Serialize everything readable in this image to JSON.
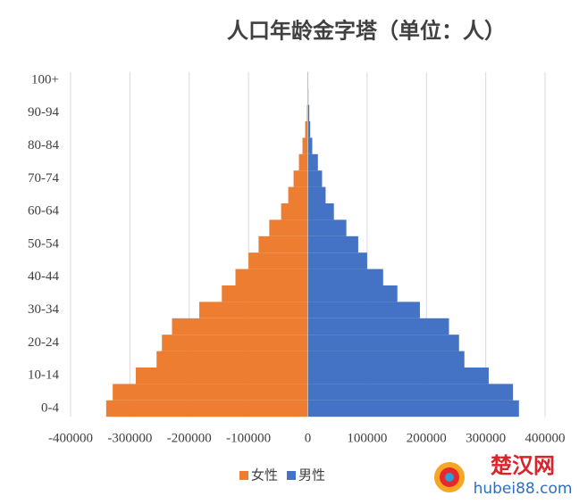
{
  "chart_data": {
    "type": "bar",
    "orientation": "horizontal",
    "title": "人口年龄金字塔（单位：人）",
    "categories": [
      "0-4",
      null,
      "10-14",
      null,
      "20-24",
      null,
      "30-34",
      null,
      "40-44",
      null,
      "50-54",
      null,
      "60-64",
      null,
      "70-74",
      null,
      "80-84",
      null,
      "90-94",
      null,
      "100+"
    ],
    "series": [
      {
        "name": "女性",
        "color": "#ed7d31",
        "values": [
          -340000,
          -329000,
          -290000,
          -255000,
          -246000,
          -229000,
          -183000,
          -145000,
          -122000,
          -100000,
          -83000,
          -65000,
          -45000,
          -33000,
          -24000,
          -15000,
          -9000,
          -4500,
          -1500,
          -500,
          -100
        ]
      },
      {
        "name": "男性",
        "color": "#4472c4",
        "values": [
          356000,
          346000,
          305000,
          264000,
          255000,
          238000,
          189000,
          151000,
          127000,
          100000,
          85000,
          65000,
          44000,
          30000,
          24000,
          17000,
          7500,
          4000,
          2500,
          1000,
          100
        ]
      }
    ],
    "xlim": [
      -400000,
      400000
    ],
    "xticks": [
      -400000,
      -300000,
      -200000,
      -100000,
      0,
      100000,
      200000,
      300000,
      400000
    ],
    "grid": true,
    "legend": "bottom"
  },
  "watermark": {
    "name": "楚汉网",
    "url": "hubei88.com"
  }
}
